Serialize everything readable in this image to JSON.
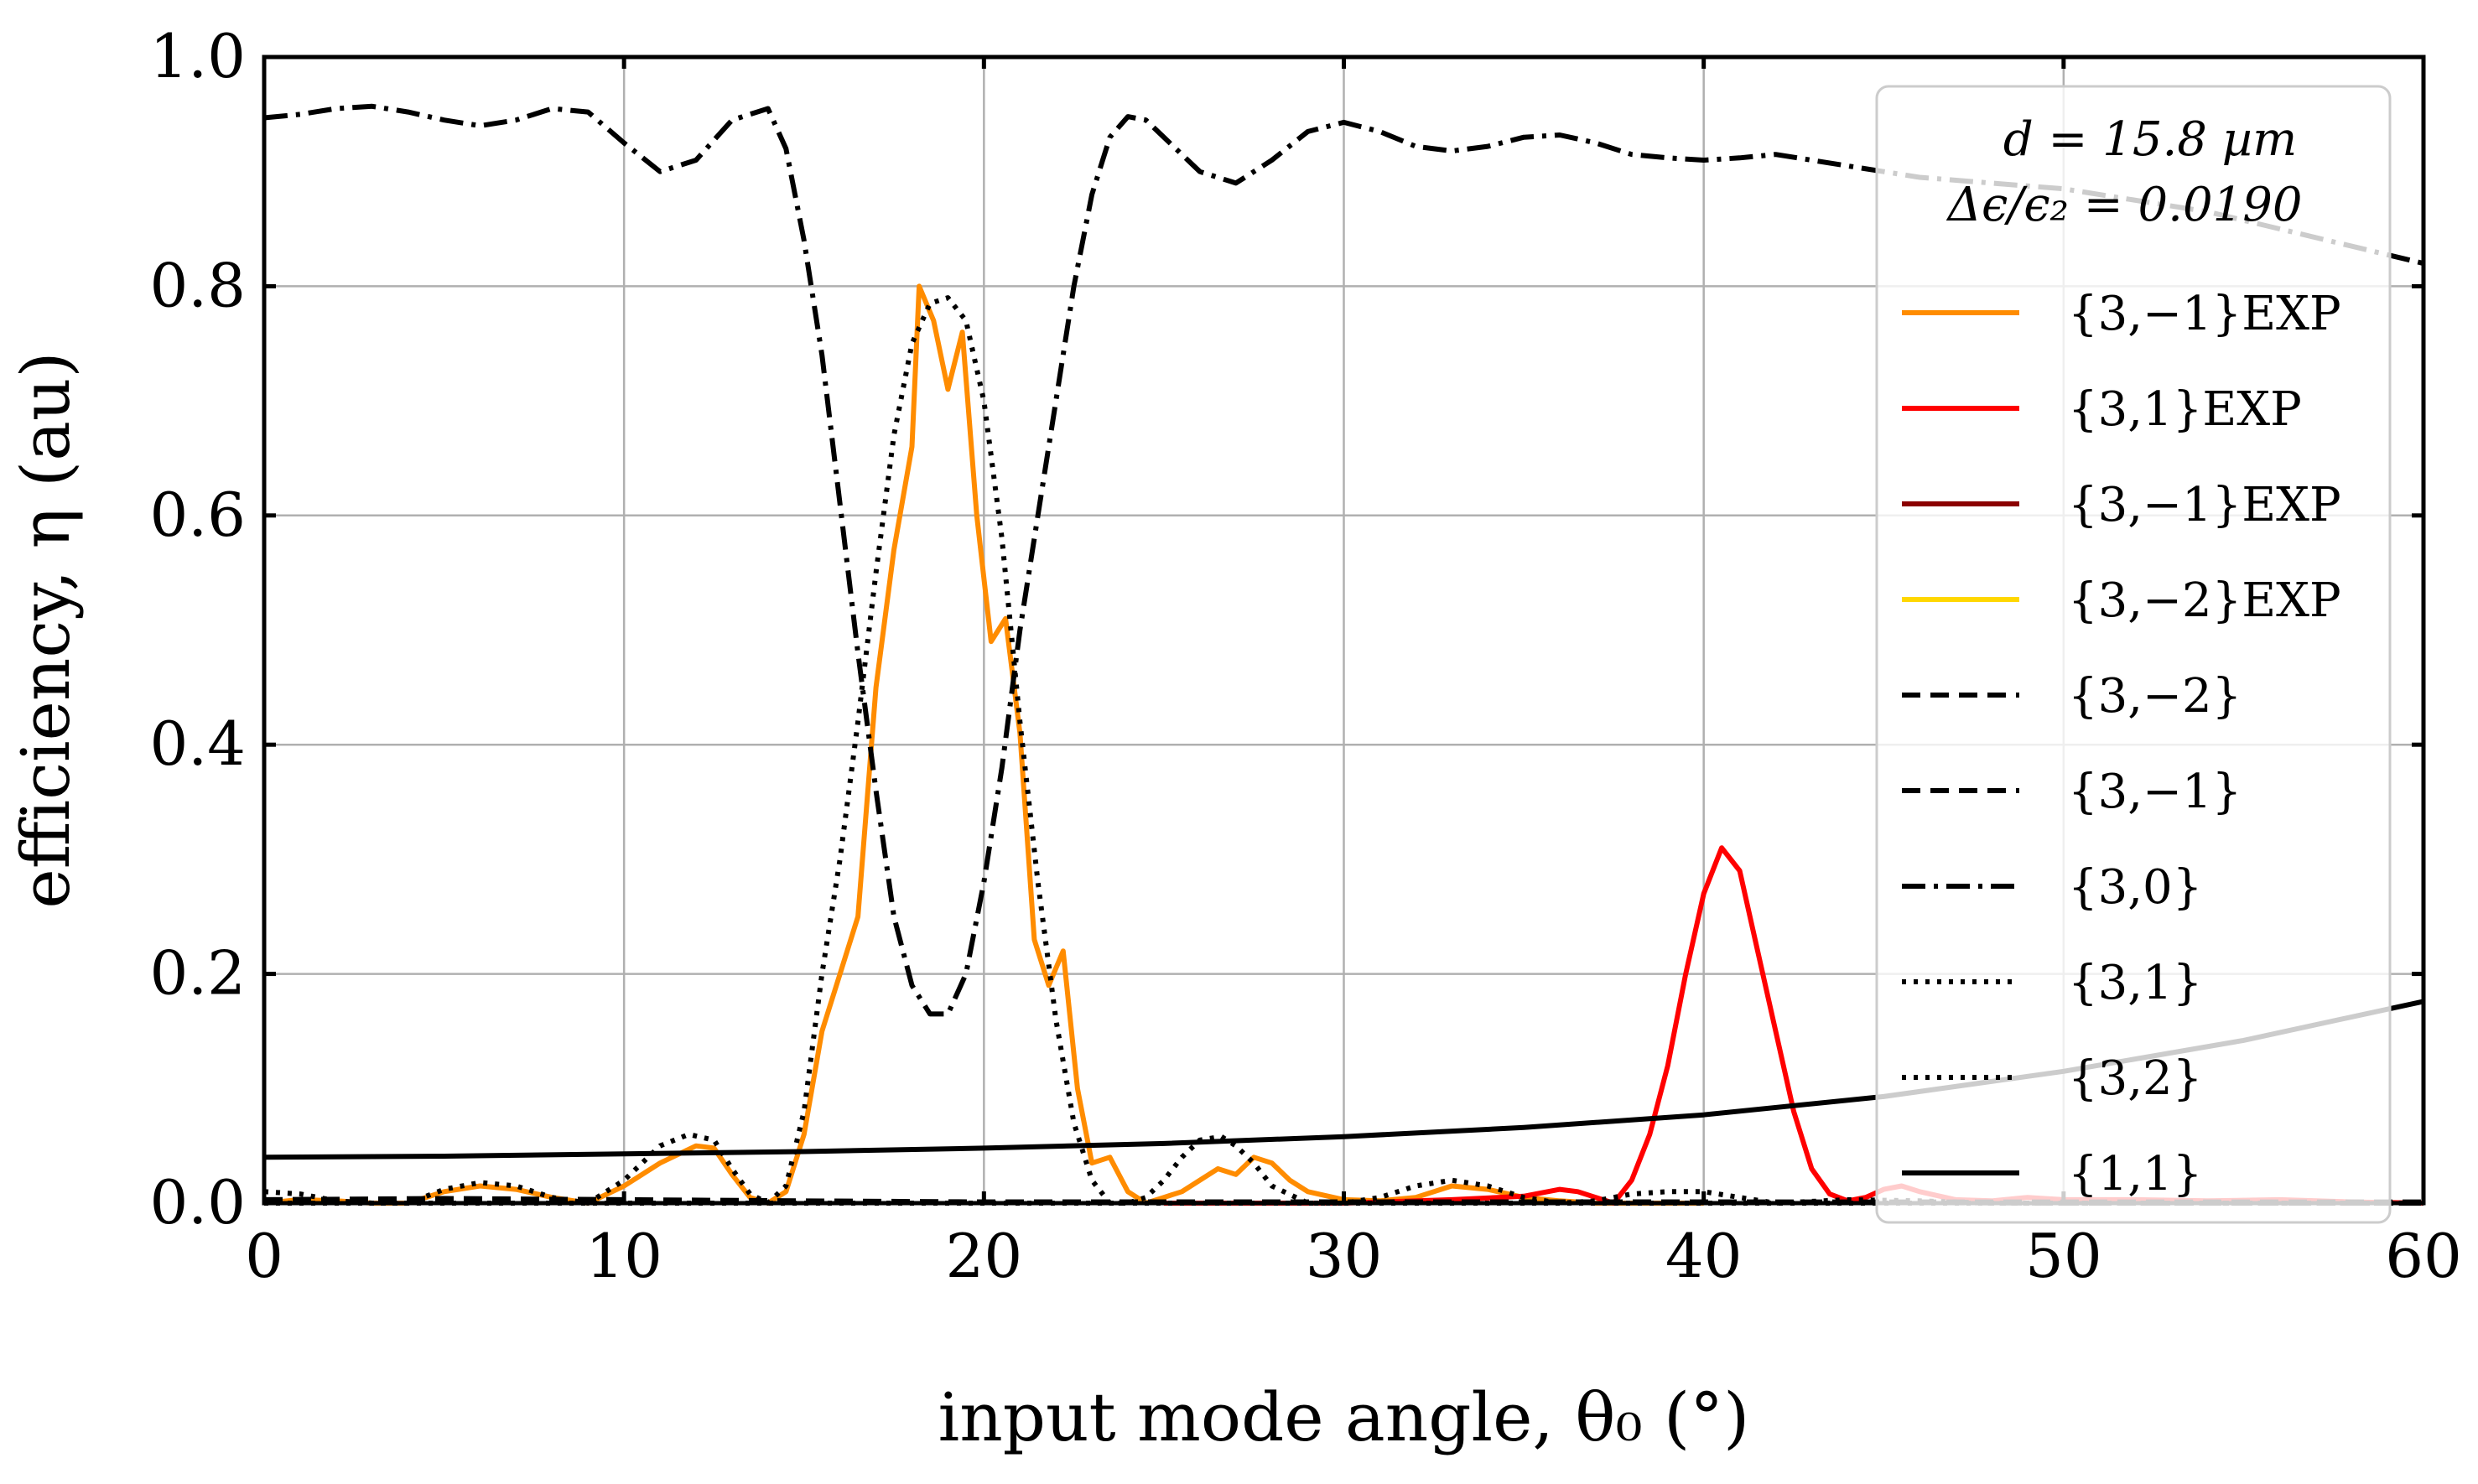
{
  "chart_data": {
    "type": "line",
    "title": "",
    "xlabel": "input mode angle, θ₀ (°)",
    "ylabel": "efficiency, η (au)",
    "xlim": [
      0,
      60
    ],
    "ylim": [
      0,
      1.0
    ],
    "xticks": [
      "0",
      "10",
      "20",
      "30",
      "40",
      "50",
      "60"
    ],
    "yticks": [
      "0.0",
      "0.2",
      "0.4",
      "0.6",
      "0.8",
      "1.0"
    ],
    "grid": true,
    "legend_placement": "top-right",
    "legend_title": [
      "d = 15.8 µm",
      "Δϵ/ϵ₂ = 0.0190"
    ],
    "series": [
      {
        "name": "{3,−1}EXP",
        "color": "#ff8c00",
        "style": "solid",
        "points": [
          [
            0,
            0.0
          ],
          [
            1,
            0.003
          ],
          [
            2,
            0.002
          ],
          [
            3,
            0.0
          ],
          [
            4,
            0.0
          ],
          [
            5,
            0.01
          ],
          [
            6,
            0.015
          ],
          [
            7,
            0.012
          ],
          [
            8,
            0.005
          ],
          [
            9,
            0.0
          ],
          [
            10,
            0.015
          ],
          [
            11,
            0.035
          ],
          [
            12,
            0.05
          ],
          [
            12.5,
            0.048
          ],
          [
            13,
            0.025
          ],
          [
            13.5,
            0.005
          ],
          [
            14,
            0.0
          ],
          [
            14.5,
            0.01
          ],
          [
            15,
            0.06
          ],
          [
            15.5,
            0.15
          ],
          [
            16,
            0.2
          ],
          [
            16.5,
            0.25
          ],
          [
            17,
            0.45
          ],
          [
            17.5,
            0.57
          ],
          [
            18,
            0.66
          ],
          [
            18.2,
            0.8
          ],
          [
            18.6,
            0.77
          ],
          [
            19,
            0.71
          ],
          [
            19.4,
            0.76
          ],
          [
            19.8,
            0.6
          ],
          [
            20.2,
            0.49
          ],
          [
            20.6,
            0.51
          ],
          [
            21,
            0.41
          ],
          [
            21.4,
            0.23
          ],
          [
            21.8,
            0.19
          ],
          [
            22.2,
            0.22
          ],
          [
            22.6,
            0.1
          ],
          [
            23,
            0.035
          ],
          [
            23.5,
            0.04
          ],
          [
            24,
            0.01
          ],
          [
            24.5,
            0.0
          ],
          [
            25,
            0.005
          ],
          [
            25.5,
            0.01
          ],
          [
            26,
            0.02
          ],
          [
            26.5,
            0.03
          ],
          [
            27,
            0.025
          ],
          [
            27.5,
            0.04
          ],
          [
            28,
            0.035
          ],
          [
            28.5,
            0.02
          ],
          [
            29,
            0.01
          ],
          [
            30,
            0.003
          ],
          [
            31,
            0.002
          ],
          [
            32,
            0.005
          ],
          [
            33,
            0.015
          ],
          [
            34,
            0.012
          ],
          [
            35,
            0.005
          ],
          [
            36,
            0.002
          ],
          [
            37,
            0.0
          ],
          [
            38,
            0.0
          ],
          [
            40,
            0.0
          ]
        ]
      },
      {
        "name": "{3,1}EXP",
        "color": "#ff0000",
        "style": "solid",
        "points": [
          [
            25,
            0.0
          ],
          [
            30,
            0.0
          ],
          [
            33,
            0.003
          ],
          [
            35,
            0.006
          ],
          [
            36,
            0.012
          ],
          [
            36.5,
            0.01
          ],
          [
            37,
            0.005
          ],
          [
            37.5,
            0.0
          ],
          [
            38,
            0.02
          ],
          [
            38.5,
            0.06
          ],
          [
            39,
            0.12
          ],
          [
            39.5,
            0.2
          ],
          [
            40,
            0.27
          ],
          [
            40.5,
            0.31
          ],
          [
            41,
            0.29
          ],
          [
            41.5,
            0.22
          ],
          [
            42,
            0.15
          ],
          [
            42.5,
            0.08
          ],
          [
            43,
            0.03
          ],
          [
            43.5,
            0.008
          ],
          [
            44,
            0.002
          ],
          [
            44.5,
            0.005
          ],
          [
            45,
            0.012
          ],
          [
            45.5,
            0.015
          ],
          [
            46,
            0.01
          ],
          [
            47,
            0.003
          ],
          [
            48,
            0.002
          ],
          [
            49,
            0.005
          ],
          [
            50,
            0.003
          ],
          [
            52,
            0.003
          ],
          [
            54,
            0.002
          ],
          [
            56,
            0.003
          ],
          [
            58,
            0.001
          ],
          [
            60,
            0.0
          ]
        ]
      },
      {
        "name": "{3,−1}EXP",
        "color": "#8b0000",
        "style": "solid",
        "points": []
      },
      {
        "name": "{3,−2}EXP",
        "color": "#ffd700",
        "style": "solid",
        "points": []
      },
      {
        "name": "{3,−2}",
        "color": "#000000",
        "style": "dashed",
        "points": [
          [
            0,
            0.003
          ],
          [
            5,
            0.004
          ],
          [
            10,
            0.003
          ],
          [
            15,
            0.002
          ],
          [
            20,
            0.001
          ],
          [
            30,
            0.001
          ],
          [
            40,
            0.001
          ],
          [
            50,
            0.001
          ],
          [
            60,
            0.001
          ]
        ]
      },
      {
        "name": "{3,−1}",
        "color": "#000000",
        "style": "dashed",
        "points": [
          [
            0,
            0.001
          ],
          [
            10,
            0.001
          ],
          [
            20,
            0.001
          ],
          [
            30,
            0.001
          ],
          [
            40,
            0.001
          ],
          [
            50,
            0.0
          ],
          [
            60,
            0.0
          ]
        ]
      },
      {
        "name": "{3,0}",
        "color": "#000000",
        "style": "dashdot",
        "points": [
          [
            0,
            0.947
          ],
          [
            1,
            0.95
          ],
          [
            2,
            0.955
          ],
          [
            3,
            0.957
          ],
          [
            4,
            0.952
          ],
          [
            5,
            0.945
          ],
          [
            6,
            0.94
          ],
          [
            7,
            0.945
          ],
          [
            8,
            0.955
          ],
          [
            9,
            0.952
          ],
          [
            10,
            0.925
          ],
          [
            11,
            0.9
          ],
          [
            12,
            0.91
          ],
          [
            13,
            0.945
          ],
          [
            14,
            0.955
          ],
          [
            14.5,
            0.92
          ],
          [
            15,
            0.84
          ],
          [
            15.5,
            0.74
          ],
          [
            16,
            0.61
          ],
          [
            16.5,
            0.48
          ],
          [
            17,
            0.36
          ],
          [
            17.5,
            0.25
          ],
          [
            18,
            0.19
          ],
          [
            18.5,
            0.165
          ],
          [
            19,
            0.165
          ],
          [
            19.5,
            0.2
          ],
          [
            20,
            0.28
          ],
          [
            20.5,
            0.38
          ],
          [
            21,
            0.5
          ],
          [
            21.5,
            0.6
          ],
          [
            22,
            0.7
          ],
          [
            22.5,
            0.8
          ],
          [
            23,
            0.88
          ],
          [
            23.5,
            0.93
          ],
          [
            24,
            0.948
          ],
          [
            24.5,
            0.945
          ],
          [
            25,
            0.93
          ],
          [
            26,
            0.9
          ],
          [
            27,
            0.89
          ],
          [
            28,
            0.91
          ],
          [
            29,
            0.935
          ],
          [
            30,
            0.943
          ],
          [
            31,
            0.935
          ],
          [
            32,
            0.922
          ],
          [
            33,
            0.918
          ],
          [
            34,
            0.922
          ],
          [
            35,
            0.93
          ],
          [
            36,
            0.932
          ],
          [
            37,
            0.925
          ],
          [
            38,
            0.915
          ],
          [
            39,
            0.912
          ],
          [
            40,
            0.91
          ],
          [
            41,
            0.912
          ],
          [
            42,
            0.915
          ],
          [
            43,
            0.91
          ],
          [
            44,
            0.905
          ],
          [
            45,
            0.9
          ],
          [
            46,
            0.895
          ],
          [
            48,
            0.89
          ],
          [
            50,
            0.885
          ],
          [
            52,
            0.875
          ],
          [
            54,
            0.865
          ],
          [
            56,
            0.85
          ],
          [
            58,
            0.835
          ],
          [
            60,
            0.82
          ]
        ]
      },
      {
        "name": "{3,1}",
        "color": "#000000",
        "style": "dotted",
        "points": [
          [
            0,
            0.01
          ],
          [
            1,
            0.008
          ],
          [
            2,
            0.002
          ],
          [
            3,
            0.0
          ],
          [
            4,
            0.0
          ],
          [
            5,
            0.012
          ],
          [
            6,
            0.018
          ],
          [
            7,
            0.015
          ],
          [
            8,
            0.005
          ],
          [
            9,
            0.0
          ],
          [
            10,
            0.02
          ],
          [
            11,
            0.05
          ],
          [
            11.8,
            0.06
          ],
          [
            12.5,
            0.055
          ],
          [
            13,
            0.03
          ],
          [
            13.5,
            0.008
          ],
          [
            14,
            0.0
          ],
          [
            14.5,
            0.015
          ],
          [
            15,
            0.08
          ],
          [
            15.5,
            0.2
          ],
          [
            16,
            0.3
          ],
          [
            16.5,
            0.42
          ],
          [
            17,
            0.55
          ],
          [
            17.5,
            0.67
          ],
          [
            18,
            0.75
          ],
          [
            18.5,
            0.785
          ],
          [
            19,
            0.79
          ],
          [
            19.5,
            0.77
          ],
          [
            20,
            0.7
          ],
          [
            20.5,
            0.58
          ],
          [
            21,
            0.42
          ],
          [
            21.5,
            0.28
          ],
          [
            22,
            0.16
          ],
          [
            22.5,
            0.07
          ],
          [
            23,
            0.02
          ],
          [
            23.5,
            0.0
          ],
          [
            24,
            0.0
          ],
          [
            24.5,
            0.005
          ],
          [
            25,
            0.02
          ],
          [
            25.5,
            0.04
          ],
          [
            26,
            0.055
          ],
          [
            26.6,
            0.058
          ],
          [
            27,
            0.05
          ],
          [
            27.5,
            0.035
          ],
          [
            28,
            0.015
          ],
          [
            29,
            0.0
          ],
          [
            30,
            0.0
          ],
          [
            31,
            0.005
          ],
          [
            32,
            0.015
          ],
          [
            33,
            0.02
          ],
          [
            34,
            0.015
          ],
          [
            35,
            0.005
          ],
          [
            36,
            0.0
          ],
          [
            37,
            0.002
          ],
          [
            38,
            0.008
          ],
          [
            39,
            0.01
          ],
          [
            40,
            0.01
          ],
          [
            41,
            0.005
          ],
          [
            42,
            0.0
          ],
          [
            44,
            0.003
          ],
          [
            46,
            0.002
          ],
          [
            48,
            0.0
          ],
          [
            50,
            0.0
          ],
          [
            55,
            0.0
          ],
          [
            60,
            0.0
          ]
        ]
      },
      {
        "name": "{3,2}",
        "color": "#000000",
        "style": "dotted",
        "points": [
          [
            0,
            0.0
          ],
          [
            10,
            0.0
          ],
          [
            20,
            0.0
          ],
          [
            30,
            0.0
          ],
          [
            40,
            0.0
          ],
          [
            50,
            0.0
          ],
          [
            60,
            0.0
          ]
        ]
      },
      {
        "name": "{1,1}",
        "color": "#000000",
        "style": "solid",
        "points": [
          [
            0,
            0.04
          ],
          [
            5,
            0.041
          ],
          [
            10,
            0.043
          ],
          [
            15,
            0.045
          ],
          [
            20,
            0.048
          ],
          [
            25,
            0.052
          ],
          [
            30,
            0.058
          ],
          [
            35,
            0.066
          ],
          [
            40,
            0.077
          ],
          [
            45,
            0.093
          ],
          [
            50,
            0.115
          ],
          [
            55,
            0.142
          ],
          [
            60,
            0.176
          ]
        ]
      }
    ]
  }
}
